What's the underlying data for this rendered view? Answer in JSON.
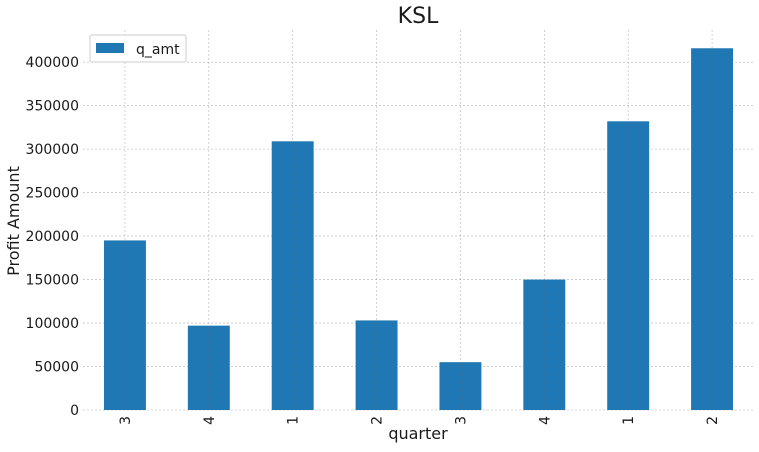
{
  "chart_data": {
    "type": "bar",
    "title": "KSL",
    "xlabel": "quarter",
    "ylabel": "Profit Amount",
    "categories": [
      "3",
      "4",
      "1",
      "2",
      "3",
      "4",
      "1",
      "2"
    ],
    "series": [
      {
        "name": "q_amt",
        "color": "#1f77b4",
        "values": [
          195000,
          97000,
          309000,
          103000,
          55000,
          150000,
          332000,
          416000
        ]
      }
    ],
    "ylim": [
      0,
      437000
    ],
    "yticks": [
      0,
      50000,
      100000,
      150000,
      200000,
      250000,
      300000,
      350000,
      400000
    ],
    "grid": true,
    "legend": "top-left"
  }
}
